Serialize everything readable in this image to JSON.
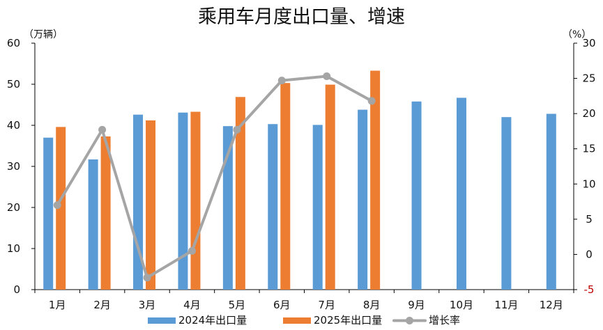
{
  "chart_data": {
    "type": "bar",
    "title": "乘用车月度出口量、增速",
    "ylabel": "（万辆）",
    "y2label": "（%）",
    "categories": [
      "1月",
      "2月",
      "3月",
      "4月",
      "5月",
      "6月",
      "7月",
      "8月",
      "9月",
      "10月",
      "11月",
      "12月"
    ],
    "series": [
      {
        "name": "2024年出口量",
        "type": "bar",
        "axis": "left",
        "color": "#5b9bd5",
        "values": [
          37.0,
          31.7,
          42.6,
          43.1,
          39.8,
          40.3,
          40.1,
          43.8,
          45.8,
          46.7,
          42.0,
          42.8
        ]
      },
      {
        "name": "2025年出口量",
        "type": "bar",
        "axis": "left",
        "color": "#ed7d31",
        "values": [
          39.6,
          37.3,
          41.2,
          43.3,
          46.9,
          50.3,
          49.9,
          53.3,
          null,
          null,
          null,
          null
        ]
      },
      {
        "name": "增长率",
        "type": "line",
        "axis": "right",
        "color": "#a5a5a5",
        "values": [
          7.0,
          17.7,
          -3.3,
          0.5,
          17.7,
          24.7,
          25.3,
          21.8,
          null,
          null,
          null,
          null
        ]
      }
    ],
    "ylim": [
      0,
      60
    ],
    "yticks": [
      0,
      10,
      20,
      30,
      40,
      50,
      60
    ],
    "y2lim": [
      -5,
      30
    ],
    "y2ticks": [
      -5,
      0,
      5,
      10,
      15,
      20,
      25,
      30
    ],
    "y2_negative_tick_color": "#c00000",
    "grid": false,
    "legend_position": "bottom"
  }
}
